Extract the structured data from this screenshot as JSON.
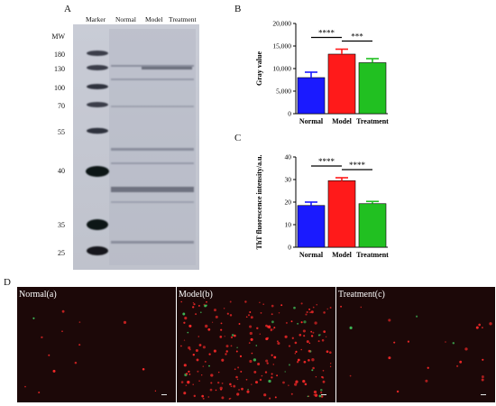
{
  "panels": {
    "a": "A",
    "b": "B",
    "c": "C",
    "d": "D"
  },
  "gel": {
    "mw_header": "MW",
    "mw_markers": [
      "180",
      "130",
      "100",
      "70",
      "55",
      "40",
      "35",
      "25"
    ],
    "lanes": [
      "Marker",
      "Normal",
      "Model",
      "Treatment"
    ]
  },
  "chart_data": [
    {
      "type": "bar",
      "panel": "B",
      "categories": [
        "Normal",
        "Model",
        "Treatment"
      ],
      "values": [
        8000,
        13200,
        11300
      ],
      "errors": [
        1200,
        1100,
        900
      ],
      "colors": [
        "#1a1aff",
        "#ff1a1a",
        "#21c021"
      ],
      "ylabel": "Gray value",
      "ylim": [
        0,
        20000
      ],
      "yticks": [
        "0",
        "5,000",
        "10,000",
        "15,000",
        "20,000"
      ],
      "significance": [
        {
          "from": 0,
          "to": 1,
          "label": "****"
        },
        {
          "from": 1,
          "to": 2,
          "label": "***"
        }
      ]
    },
    {
      "type": "bar",
      "panel": "C",
      "categories": [
        "Normal",
        "Model",
        "Treatment"
      ],
      "values": [
        18.5,
        29.5,
        19.3
      ],
      "errors": [
        1.5,
        1.3,
        1.0
      ],
      "colors": [
        "#1a1aff",
        "#ff1a1a",
        "#21c021"
      ],
      "ylabel": "ThT fluorescence intensity/a.u.",
      "ylim": [
        0,
        40
      ],
      "yticks": [
        "0",
        "10",
        "20",
        "30",
        "40"
      ],
      "significance": [
        {
          "from": 0,
          "to": 1,
          "label": "****"
        },
        {
          "from": 1,
          "to": 2,
          "label": "****"
        }
      ]
    }
  ],
  "micrographs": [
    {
      "group": "Normal",
      "tag": "(a)",
      "spots": 14
    },
    {
      "group": "Model",
      "tag": "(b)",
      "spots": 230
    },
    {
      "group": "Treatment",
      "tag": "(c)",
      "spots": 24
    }
  ]
}
